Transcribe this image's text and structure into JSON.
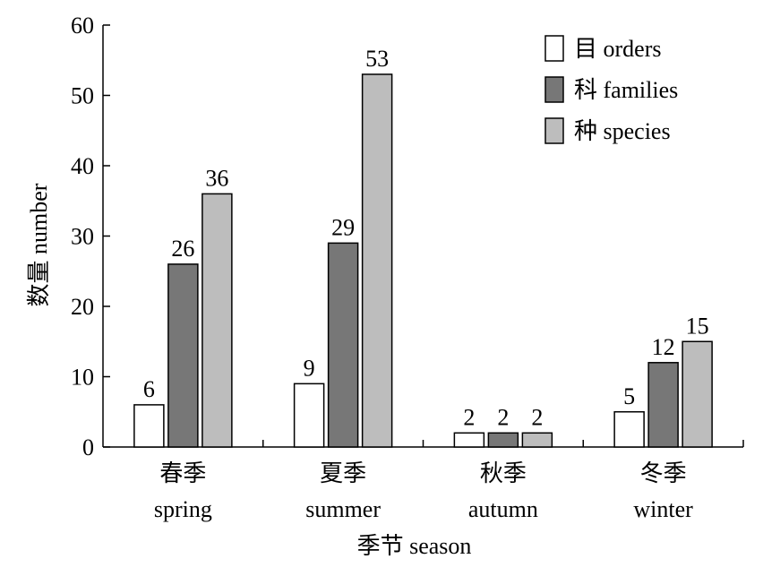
{
  "chart_data": {
    "type": "bar",
    "categories": [
      {
        "zh": "春季",
        "en": "spring"
      },
      {
        "zh": "夏季",
        "en": "summer"
      },
      {
        "zh": "秋季",
        "en": "autumn"
      },
      {
        "zh": "冬季",
        "en": "winter"
      }
    ],
    "series": [
      {
        "name": "目 orders",
        "color": "#ffffff",
        "values": [
          6,
          9,
          2,
          5
        ]
      },
      {
        "name": "科 families",
        "color": "#777777",
        "values": [
          26,
          29,
          2,
          12
        ]
      },
      {
        "name": "种 species",
        "color": "#bdbdbd",
        "values": [
          36,
          53,
          2,
          15
        ]
      }
    ],
    "xlabel": "季节 season",
    "ylabel": "数量 number",
    "ylim": [
      0,
      60
    ],
    "yticks": [
      0,
      10,
      20,
      30,
      40,
      50,
      60
    ],
    "grid": false,
    "legend": "top-right"
  }
}
